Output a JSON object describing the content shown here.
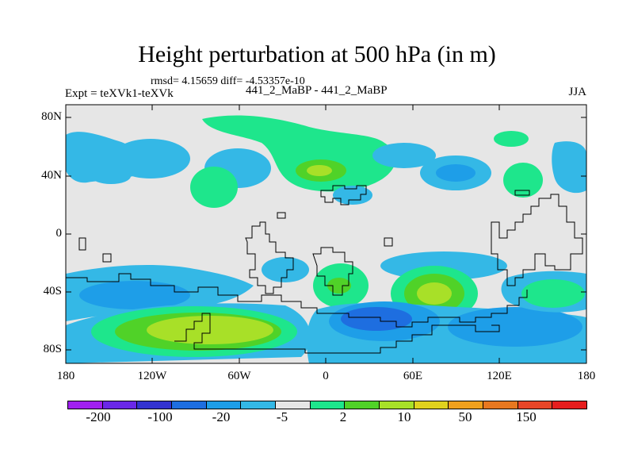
{
  "title": "Height perturbation at 500 hPa (in m)",
  "stats": "rmsd= 4.15659 diff= -4.53357e-10",
  "left_label": "Expt = teXVk1-teXVk",
  "center_label": "441_2_MaBP - 441_2_MaBP",
  "season": "JJA",
  "y_ticks": [
    "80N",
    "40N",
    "0",
    "40S",
    "80S"
  ],
  "x_ticks": [
    "180",
    "120W",
    "60W",
    "0",
    "60E",
    "120E",
    "180"
  ],
  "colorbar": {
    "colors": [
      "#a020f0",
      "#6a28e8",
      "#3232d0",
      "#1e6ee0",
      "#1e9ee8",
      "#34b8e6",
      "#e6e6e6",
      "#1ee68c",
      "#50d228",
      "#a8e028",
      "#e0d21e",
      "#f0a01e",
      "#e87820",
      "#e84628",
      "#e61e1e"
    ],
    "labels": [
      "-200",
      "-100",
      "-20",
      "-5",
      "2",
      "10",
      "50",
      "150"
    ]
  },
  "map_colors": {
    "background": "#e6e6e6",
    "neg1": "#34b8e6",
    "neg2": "#1e9ee8",
    "neg3": "#1e6ee0",
    "pos1": "#1ee68c",
    "pos2": "#50d228",
    "pos3": "#a8e028"
  }
}
